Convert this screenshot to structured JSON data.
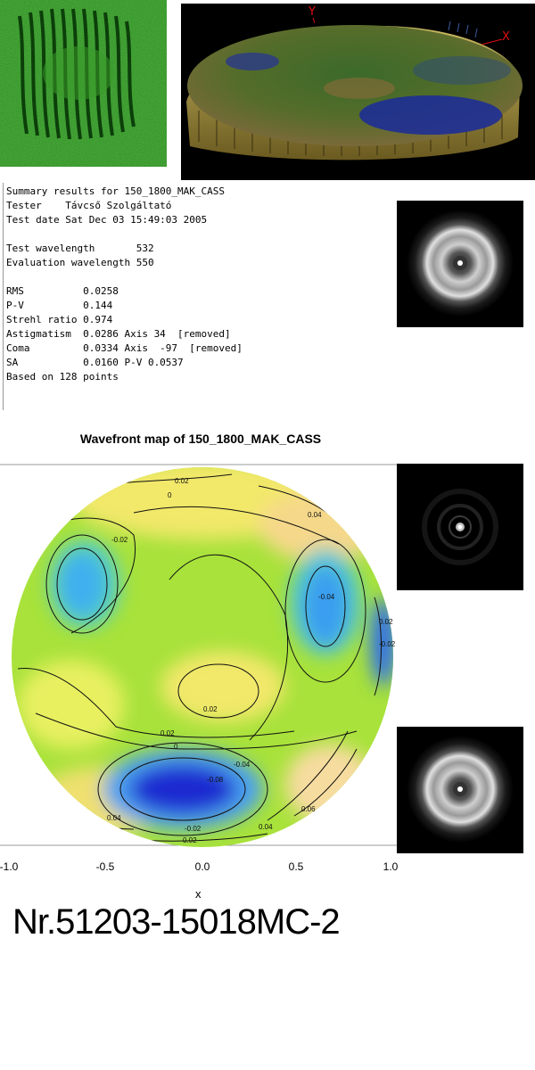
{
  "surface3d": {
    "axis_y": "Y",
    "axis_x": "X"
  },
  "summary": {
    "title": "Summary results for 150_1800_MAK_CASS",
    "rows": [
      "Tester    Távcső Szolgáltató",
      "Test date Sat Dec 03 15:49:03 2005",
      "",
      "Test wavelength       532",
      "Evaluation wavelength 550",
      "",
      "RMS          0.0258",
      "P-V          0.144",
      "Strehl ratio 0.974",
      "Astigmatism  0.0286 Axis 34  [removed]",
      "Coma         0.0334 Axis  -97  [removed]",
      "SA           0.0160 P-V 0.0537",
      "Based on 128 points"
    ]
  },
  "wavefront": {
    "title": "Wavefront map of 150_1800_MAK_CASS",
    "xlabel": "x",
    "xticks": [
      "-1.0",
      "-0.5",
      "0.0",
      "0.5",
      "1.0"
    ],
    "contour_labels": [
      "0.02",
      "0",
      "-0.02",
      "0.04",
      "-0.04",
      "0.02",
      "0",
      "-0.04",
      "-0.08",
      "0.06",
      "0.04",
      "-0.02",
      "0.02",
      "0.04",
      "0.02",
      "-0.02",
      "0.02"
    ]
  },
  "serial": "Nr.51203-15018MC-2"
}
